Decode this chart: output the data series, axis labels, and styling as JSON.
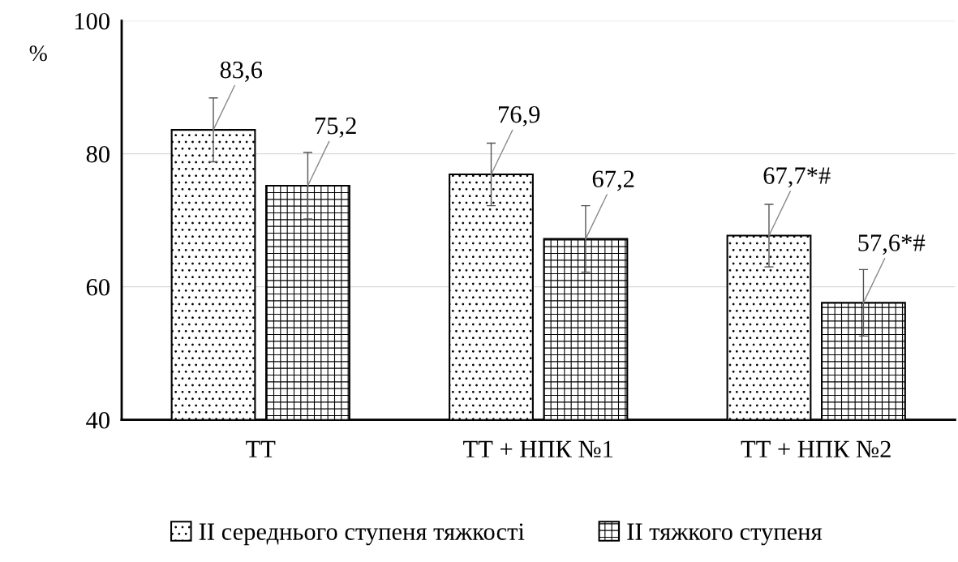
{
  "chart_data": {
    "type": "bar",
    "ylabel": "%",
    "categories": [
      "ТТ",
      "ТТ + НПК №1",
      "ТТ + НПК №2"
    ],
    "series": [
      {
        "name": "ІІ середнього ступеня тяжкості",
        "color": "#000000",
        "values": [
          83.6,
          76.9,
          67.7
        ],
        "errors": [
          4.8,
          4.7,
          4.7
        ],
        "value_labels": [
          "83,6",
          "76,9",
          "67,7*#"
        ]
      },
      {
        "name": "ІІ тяжкого ступеня",
        "color": "#000000",
        "values": [
          75.2,
          67.2,
          57.6
        ],
        "errors": [
          5.0,
          5.0,
          5.0
        ],
        "value_labels": [
          "75,2",
          "67,2",
          "57,6*#"
        ]
      }
    ],
    "ylim": [
      40,
      100
    ],
    "yticks": [
      40,
      60,
      80,
      100
    ],
    "grid": "y",
    "legend": "bottom"
  }
}
